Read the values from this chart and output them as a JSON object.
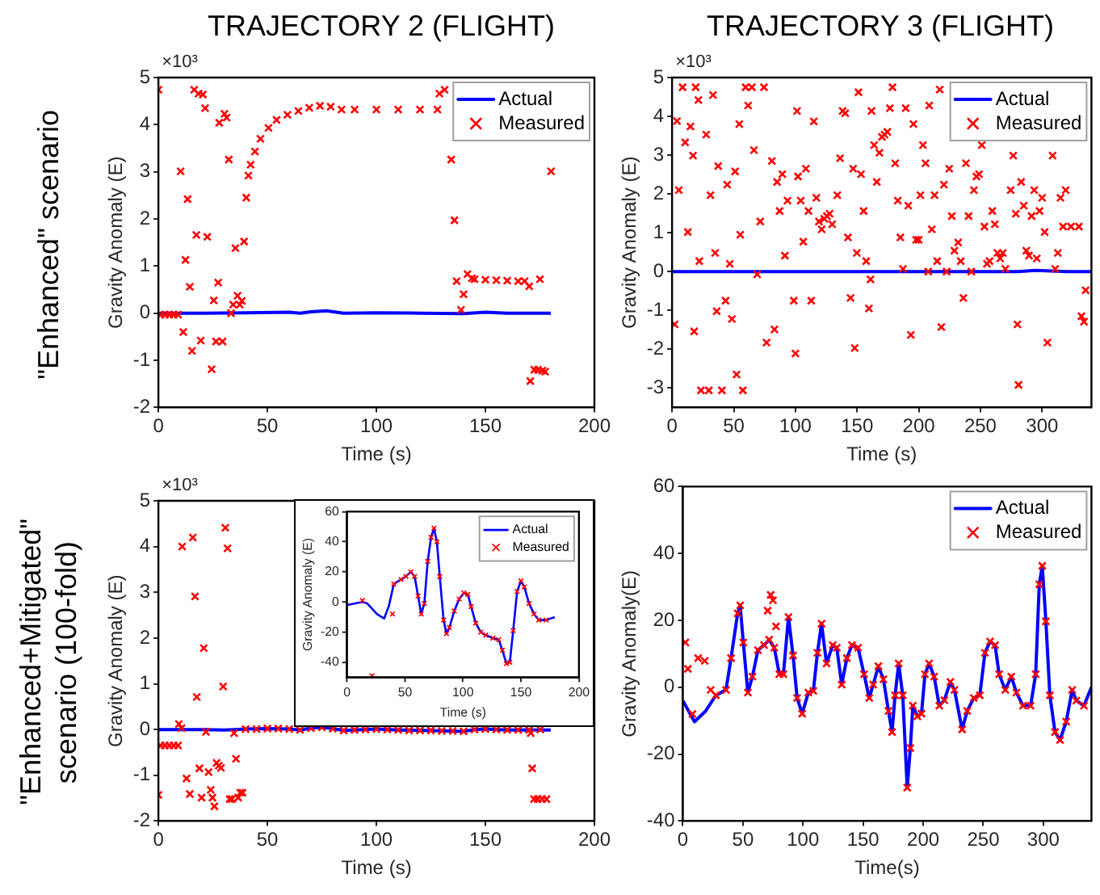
{
  "chart_data": [
    {
      "type": "line",
      "title": "TRAJECTORY 2 (FLIGHT)",
      "xlabel": "Time (s)",
      "ylabel": "Gravity Anomaly (E)",
      "annotations": [
        "\"Enhanced\" scenario",
        "×10³"
      ],
      "xlim": [
        0,
        200
      ],
      "xticks": [
        0,
        50,
        100,
        150,
        200
      ],
      "ylim": [
        -2,
        5
      ],
      "yticks": [
        -2,
        -1,
        0,
        1,
        2,
        3,
        4,
        5
      ],
      "legend": "top right",
      "series": [
        {
          "name": "Actual",
          "type": "line",
          "color": "#0000ff",
          "marker": "none",
          "x": [
            0,
            20,
            40,
            60,
            65,
            70,
            77,
            85,
            100,
            120,
            140,
            150,
            160,
            180
          ],
          "values": [
            0,
            0,
            0.01,
            0.02,
            0,
            0.03,
            0.05,
            0,
            0.01,
            0,
            -0.01,
            0.02,
            0,
            0
          ]
        },
        {
          "name": "Measured",
          "type": "scatter",
          "color": "#ff0000",
          "marker": "cross",
          "x": [
            0,
            1,
            3,
            5,
            7,
            9,
            10.2,
            11.4,
            12.4,
            13.4,
            14.4,
            15.4,
            16.4,
            17.4,
            18.4,
            19.4,
            20.4,
            21.4,
            22.4,
            24.4,
            25.4,
            26.4,
            27.4,
            27.9,
            29.4,
            30.3,
            31.3,
            32.3,
            33.3,
            34.3,
            35.3,
            36.3,
            37.3,
            38.3,
            39.3,
            40.3,
            41.3,
            42.3,
            44.3,
            46.8,
            50.5,
            54.2,
            59.2,
            64.2,
            69.2,
            74.1,
            79,
            84,
            90,
            100,
            110,
            120,
            128,
            128.9,
            131.3,
            134.3,
            135.8,
            136.8,
            138.8,
            140,
            141.8,
            143.8,
            145,
            150,
            155,
            160,
            165,
            168,
            170.1,
            170.6,
            172.4,
            174.1,
            175,
            176.1,
            177.4,
            180.1
          ],
          "values": [
            4.74,
            -0.03,
            -0.03,
            -0.03,
            -0.03,
            -0.03,
            3.01,
            -0.4,
            1.13,
            2.42,
            0.56,
            -0.8,
            4.74,
            1.66,
            4.66,
            -0.58,
            4.64,
            4.35,
            1.62,
            -1.19,
            0.27,
            -0.6,
            0.65,
            4.04,
            -0.6,
            4.23,
            4.15,
            3.26,
            0,
            0.18,
            1.38,
            0.37,
            0.18,
            0.26,
            1.52,
            2.45,
            2.92,
            3.15,
            3.43,
            3.7,
            3.93,
            4.1,
            4.21,
            4.29,
            4.36,
            4.4,
            4.38,
            4.32,
            4.32,
            4.32,
            4.32,
            4.32,
            4.32,
            4.66,
            4.74,
            3.26,
            1.97,
            0.68,
            0.07,
            0.4,
            0.83,
            0.74,
            0.72,
            0.71,
            0.7,
            0.69,
            0.68,
            0.68,
            0.57,
            -1.44,
            -1.2,
            -1.2,
            0.72,
            -1.22,
            -1.24,
            3.01
          ]
        }
      ]
    },
    {
      "type": "line",
      "title": "TRAJECTORY 3 (FLIGHT)",
      "xlabel": "Time (s)",
      "ylabel": "Gravity Anomaly (E)",
      "annotations": [
        "×10³"
      ],
      "xlim": [
        0,
        340
      ],
      "xticks": [
        0,
        50,
        100,
        150,
        200,
        250,
        300
      ],
      "ylim": [
        -3.5,
        5
      ],
      "yticks": [
        -3,
        -2,
        -1,
        0,
        1,
        2,
        3,
        4,
        5
      ],
      "legend": "top right",
      "series": [
        {
          "name": "Actual",
          "type": "line",
          "color": "#0000ff",
          "marker": "none",
          "x": [
            0,
            40,
            80,
            120,
            160,
            200,
            240,
            280,
            295,
            320,
            340
          ],
          "values": [
            0,
            0,
            0,
            0,
            0,
            0,
            0,
            0,
            0.03,
            0,
            0
          ]
        },
        {
          "name": "Measured",
          "type": "scatter",
          "color": "#ff0000",
          "marker": "cross",
          "x": [
            2,
            4,
            5.5,
            8.5,
            10.6,
            12.8,
            14.9,
            17,
            17.9,
            19.1,
            21.3,
            22.1,
            23.4,
            27.7,
            29.8,
            31.1,
            33.2,
            34.9,
            36.2,
            37.4,
            40.4,
            43.4,
            44.7,
            46.8,
            48.5,
            51.1,
            52.3,
            54.5,
            55.3,
            57.4,
            59.6,
            61.7,
            64.7,
            66.4,
            69,
            71.5,
            74.5,
            76.6,
            80.9,
            83,
            85.1,
            87.2,
            89.4,
            91.5,
            93.6,
            98.7,
            100,
            101.3,
            102.1,
            104.3,
            106.4,
            108.5,
            110.6,
            112.8,
            114.9,
            117,
            119.1,
            121.3,
            123.4,
            125.5,
            127.7,
            129.8,
            134,
            136.2,
            138.3,
            140.4,
            142.6,
            144.7,
            146.8,
            148.1,
            149.8,
            151.1,
            153.2,
            155.3,
            157.4,
            159.6,
            160.9,
            161.7,
            163.8,
            166,
            168.1,
            170.2,
            172.3,
            174.5,
            176.6,
            178.7,
            180.9,
            183,
            185.1,
            187.2,
            189.4,
            191.5,
            193.6,
            195.7,
            197.9,
            200,
            201.3,
            203.4,
            205.5,
            207.7,
            208.5,
            210.6,
            212.8,
            214.9,
            217,
            218.3,
            220.4,
            222.6,
            224.7,
            226.8,
            228.9,
            231.9,
            234,
            236.2,
            238.3,
            240.4,
            242.6,
            244.7,
            246.8,
            248.9,
            251.1,
            253.2,
            255.3,
            257.4,
            259.6,
            261.7,
            263.8,
            266,
            268.1,
            270.2,
            274.5,
            276.6,
            278.7,
            280,
            280.9,
            283,
            285.1,
            287.2,
            289.4,
            291.5,
            293.6,
            295.7,
            297.9,
            300,
            302.1,
            304.3,
            308.5,
            310.6,
            312.8,
            314.9,
            317,
            319.1,
            323.4,
            329.8,
            331.9,
            334,
            335.3
          ],
          "values": [
            -1.36,
            3.88,
            2.1,
            4.75,
            3.33,
            1.02,
            3.74,
            2.99,
            -1.54,
            4.75,
            4.42,
            0.27,
            -3.06,
            3.53,
            -3.06,
            1.97,
            4.55,
            0.48,
            -1.02,
            2.72,
            -3.06,
            -0.75,
            2.24,
            0.2,
            -1.22,
            2.58,
            -2.65,
            3.8,
            0.95,
            -3.06,
            4.75,
            4.28,
            4.75,
            3.13,
            -0.07,
            1.29,
            4.75,
            -1.83,
            2.85,
            -1.49,
            2.31,
            1.56,
            2.51,
            0.41,
            1.83,
            -0.75,
            -2.11,
            4.14,
            2.45,
            1.83,
            0.77,
            2.65,
            1.56,
            -0.75,
            3.87,
            1.9,
            1.29,
            1.09,
            1.36,
            1.43,
            1.49,
            1.22,
            1.97,
            2.92,
            4.14,
            4.08,
            0.88,
            -0.68,
            2.65,
            -1.97,
            0.48,
            4.62,
            2.51,
            1.56,
            0.27,
            -0.95,
            -0.2,
            4.14,
            3.26,
            2.31,
            3.06,
            3.47,
            3.53,
            3.6,
            4.21,
            4.75,
            2.79,
            1.83,
            0.88,
            0.07,
            4.21,
            1.7,
            -1.63,
            3.8,
            0.82,
            0.82,
            1.97,
            3.26,
            2.79,
            0,
            4.28,
            1.09,
            1.97,
            0.27,
            4.69,
            -1.43,
            2.24,
            0,
            2.65,
            1.43,
            0.54,
            0.75,
            0.27,
            -0.68,
            2.79,
            1.43,
            0,
            2.1,
            2.45,
            2.51,
            3.26,
            1.16,
            0.2,
            0.27,
            1.56,
            1.22,
            0.48,
            0.34,
            0.48,
            0.07,
            2.1,
            2.99,
            1.49,
            -1.36,
            -2.92,
            2.31,
            1.7,
            0.54,
            0.41,
            1.43,
            2.1,
            0.34,
            1.56,
            1.9,
            1.02,
            -1.83,
            2.99,
            0.07,
            0.48,
            1.9,
            1.16,
            2.1,
            1.16,
            1.16,
            -1.15,
            -1.29,
            -0.48
          ]
        }
      ]
    },
    {
      "type": "line",
      "xlabel": "Time (s)",
      "ylabel": "Gravity Anomaly (E)",
      "annotations": [
        "\"Enhanced+Mitigated\"",
        "scenario (100-fold)",
        "×10³"
      ],
      "xlim": [
        0,
        200
      ],
      "xticks": [
        0,
        50,
        100,
        150,
        200
      ],
      "ylim": [
        -2,
        5
      ],
      "yticks": [
        -2,
        -1,
        0,
        1,
        2,
        3,
        4,
        5
      ],
      "legend": false,
      "series": [
        {
          "type": "line",
          "color": "#0000ff",
          "marker": "none",
          "x": [
            0,
            10,
            20,
            30,
            35,
            40,
            50,
            60,
            65,
            70,
            75,
            80,
            85,
            90,
            100,
            110,
            120,
            130,
            140,
            145,
            150,
            160,
            170,
            180
          ],
          "values": [
            0,
            0,
            0,
            -0.01,
            0,
            0.01,
            0.02,
            0.01,
            -0.01,
            0.03,
            0.05,
            0.02,
            -0.02,
            -0.01,
            0.01,
            -0.01,
            -0.02,
            -0.03,
            -0.04,
            0,
            0.01,
            -0.01,
            -0.01,
            -0.01
          ]
        },
        {
          "type": "scatter",
          "color": "#ff0000",
          "marker": "cross",
          "x": [
            0,
            1,
            3,
            5,
            7,
            9,
            9.4,
            10.6,
            10.9,
            12.9,
            14.4,
            15.8,
            16.8,
            17.6,
            18.8,
            19.8,
            20.8,
            21.8,
            23,
            24,
            24.8,
            25.7,
            26.7,
            27.7,
            28.7,
            29.7,
            30.7,
            31.7,
            32.7,
            33.7,
            34.7,
            35.6,
            36.6,
            37.6,
            38.6,
            40,
            45,
            50,
            55,
            60,
            65,
            70,
            75,
            80,
            85,
            90,
            95,
            100,
            105,
            110,
            115,
            120,
            125,
            130,
            135,
            140,
            145,
            150,
            155,
            160,
            165,
            170,
            170.8,
            171.5,
            172.3,
            174,
            175.2,
            176,
            178
          ],
          "values": [
            -1.43,
            -0.35,
            -0.35,
            -0.35,
            -0.35,
            -0.35,
            0.12,
            0.03,
            4.0,
            -1.07,
            -1.41,
            4.2,
            2.91,
            0.71,
            -0.85,
            -1.49,
            1.78,
            -0.05,
            -0.93,
            -1.32,
            -1.49,
            -1.68,
            -0.73,
            -0.79,
            -0.84,
            0.94,
            4.41,
            3.96,
            -1.52,
            -1.52,
            -0.08,
            -0.64,
            -1.49,
            -1.38,
            -1.38,
            0.01,
            0.01,
            0.02,
            0.02,
            0.01,
            -0.01,
            0.03,
            0.05,
            0.02,
            -0.02,
            -0.01,
            0,
            0.01,
            0,
            -0.01,
            -0.02,
            -0.02,
            -0.02,
            -0.03,
            -0.03,
            -0.04,
            0,
            0.01,
            0,
            -0.01,
            -0.01,
            -0.01,
            -0.08,
            -0.85,
            -1.52,
            -1.52,
            0,
            -1.52,
            -1.52
          ]
        }
      ]
    },
    {
      "type": "line",
      "xlabel": "Time (s)",
      "ylabel": "Gravity Anomaly (E)",
      "xlim": [
        0,
        200
      ],
      "xticks": [
        0,
        50,
        100,
        150,
        200
      ],
      "ylim": [
        -50,
        60
      ],
      "yticks": [
        -40,
        -20,
        0,
        20,
        40,
        60
      ],
      "legend": "top right",
      "series": [
        {
          "name": "Actual",
          "type": "line",
          "color": "#0000ff",
          "marker": "none",
          "x": [
            0,
            13.3,
            17.5,
            25.8,
            32,
            36,
            40.4,
            46.7,
            50.8,
            55,
            58.3,
            61.3,
            64,
            66.7,
            69.6,
            72.5,
            75,
            77.5,
            80,
            83.3,
            85.8,
            88.3,
            92.5,
            96.7,
            100.8,
            104.2,
            107,
            111,
            115.4,
            119.6,
            125.8,
            130.8,
            134,
            137.5,
            140.4,
            143.3,
            146.7,
            150,
            152.9,
            157,
            161.3,
            165.4,
            171.7,
            179.2
          ],
          "values": [
            -2,
            0,
            -1,
            -8,
            -11,
            -3,
            12,
            15,
            17,
            20,
            17,
            4,
            -8,
            -1,
            27,
            43,
            49,
            40,
            17,
            -12,
            -21,
            -17,
            -6,
            2,
            6,
            5,
            -3,
            -14,
            -20,
            -22,
            -24,
            -25,
            -32,
            -41,
            -40,
            -19,
            7,
            14,
            10,
            -1,
            -8,
            -12,
            -12,
            -10
          ]
        },
        {
          "name": "Measured",
          "type": "scatter",
          "color": "#ff0000",
          "marker": "cross",
          "x": [
            13.3,
            21.7,
            39.2,
            40.4,
            46.7,
            50.8,
            55,
            58.3,
            61.3,
            64,
            66.7,
            69.6,
            72.5,
            75,
            77.5,
            80,
            83.3,
            85.8,
            88.3,
            92.5,
            96.7,
            100.8,
            104.2,
            107,
            111,
            115.4,
            119.6,
            125.8,
            130.8,
            134,
            137.5,
            140.4,
            143.3,
            146.7,
            150,
            152.9,
            157,
            161.3,
            165.4,
            171.7
          ],
          "values": [
            1,
            -49,
            -8,
            12,
            15,
            17,
            20,
            17,
            4,
            -8,
            -1,
            27,
            43,
            49,
            40,
            17,
            -12,
            -21,
            -17,
            -6,
            2,
            6,
            5,
            -3,
            -14,
            -20,
            -22,
            -24,
            -25,
            -32,
            -41,
            -40,
            -19,
            7,
            14,
            10,
            -1,
            -8,
            -12,
            -12
          ]
        }
      ]
    },
    {
      "type": "line",
      "xlabel": "Time(s)",
      "ylabel": "Gravity Anomaly(E)",
      "xlim": [
        0,
        340
      ],
      "xticks": [
        0,
        50,
        100,
        150,
        200,
        250,
        300
      ],
      "ylim": [
        -40,
        60
      ],
      "yticks": [
        -40,
        -20,
        0,
        20,
        40,
        60
      ],
      "legend": "top right",
      "series": [
        {
          "name": "Actual",
          "type": "line",
          "color": "#0000ff",
          "marker": "none",
          "x": [
            0,
            9.7,
            19,
            27.5,
            35.9,
            40.1,
            45.6,
            47.7,
            50.3,
            54.1,
            57.9,
            62.5,
            67.6,
            71.8,
            76.1,
            80.3,
            83.7,
            87.9,
            91.7,
            95.1,
            99.3,
            104.4,
            108.6,
            112,
            115.4,
            119.6,
            124.7,
            128.1,
            132.2,
            136.5,
            140.7,
            145.8,
            150.8,
            155.1,
            158.4,
            162.7,
            166.9,
            171.1,
            174.1,
            176.6,
            179.6,
            183,
            186.7,
            189.3,
            191.4,
            195.2,
            198.6,
            201.5,
            204.9,
            209.1,
            213.4,
            217.6,
            222.6,
            226,
            232.4,
            236.6,
            242.1,
            247.1,
            251.4,
            255.6,
            259.8,
            263.2,
            268.3,
            273.3,
            277.6,
            283,
            289.4,
            293.6,
            296.6,
            299.1,
            302.1,
            305.4,
            309.7,
            313.9,
            319,
            324,
            327.4,
            333.8,
            340
          ],
          "values": [
            -4,
            -10.3,
            -7.1,
            -2.4,
            -0.8,
            8.7,
            22.1,
            24.5,
            13.4,
            -1.6,
            3.2,
            11.1,
            12.6,
            14.2,
            11.8,
            3.9,
            3.9,
            21,
            9.5,
            -3.2,
            -7.9,
            -1.6,
            -1.1,
            10.3,
            19,
            7.1,
            12.6,
            11.8,
            0.8,
            8.7,
            12.6,
            11.8,
            3.9,
            -3.2,
            0.8,
            6.3,
            2.4,
            -7.1,
            -13.4,
            -2.4,
            7.1,
            -2.4,
            -30,
            -18.2,
            -5.5,
            -8.7,
            -7.9,
            3.9,
            7.1,
            3.2,
            -5.5,
            -3.9,
            1.6,
            -0.8,
            -12.6,
            -7.1,
            -3.2,
            -2.4,
            10.3,
            13.7,
            12.6,
            3.9,
            -0.8,
            3.2,
            -1.6,
            -5.5,
            -5.5,
            3.9,
            30.8,
            36.3,
            19.7,
            -2.4,
            -13.4,
            -15.8,
            -10.3,
            -0.8,
            -4,
            -5.5,
            0
          ]
        },
        {
          "name": "Measured",
          "type": "scatter",
          "color": "#ff0000",
          "marker": "cross",
          "x": [
            2.1,
            4.2,
            8,
            12.7,
            18.2,
            23.2,
            27.5,
            35.9,
            40.1,
            45.6,
            47.7,
            50.3,
            54.1,
            57.9,
            62.5,
            67.6,
            71.8,
            76.1,
            80.3,
            83.7,
            87.9,
            91.7,
            95.1,
            99.3,
            104.4,
            108.6,
            112,
            115.4,
            119.6,
            124.7,
            128.1,
            132.2,
            136.5,
            140.7,
            145.8,
            150.8,
            155.1,
            158.4,
            162.7,
            166.9,
            171.1,
            174.1,
            176.6,
            179.6,
            183,
            186.7,
            189.3,
            191.4,
            195.2,
            198.6,
            201.5,
            204.9,
            209.1,
            213.4,
            217.6,
            222.6,
            226,
            232.4,
            236.6,
            242.1,
            247.1,
            251.4,
            255.6,
            259.8,
            263.2,
            268.3,
            273.3,
            277.6,
            283,
            289.4,
            293.6,
            296.6,
            299.1,
            302.1,
            305.4,
            309.7,
            313.9,
            319,
            324,
            327.4,
            333.8,
            70.6,
            73.1,
            75,
            77.5
          ],
          "values": [
            13.4,
            5.5,
            -8,
            8.7,
            7.9,
            -0.8,
            -2.4,
            -0.8,
            8.7,
            22.1,
            24.5,
            13.4,
            -1.6,
            3.2,
            11.1,
            12.6,
            14.2,
            11.8,
            3.9,
            3.9,
            21,
            9.5,
            -3.2,
            -7.9,
            -1.6,
            -1.1,
            10.3,
            19,
            7.1,
            12.6,
            11.8,
            0.8,
            8.7,
            12.6,
            11.8,
            3.9,
            -3.2,
            0.8,
            6.3,
            2.4,
            -7.1,
            -13.4,
            -2.4,
            7.1,
            -2.4,
            -30,
            -18.2,
            -5.5,
            -8.7,
            -7.9,
            3.9,
            7.1,
            3.2,
            -5.5,
            -3.9,
            1.6,
            -0.8,
            -12.6,
            -7.1,
            -3.2,
            -2.4,
            10.3,
            13.7,
            12.6,
            3.9,
            -0.8,
            3.2,
            -1.6,
            -5.5,
            -5.5,
            3.9,
            30.8,
            36.3,
            19.7,
            -2.4,
            -13.4,
            -15.8,
            -10.3,
            -0.8,
            -4,
            -5.5,
            22.9,
            27.6,
            26,
            18.2
          ]
        }
      ]
    }
  ]
}
